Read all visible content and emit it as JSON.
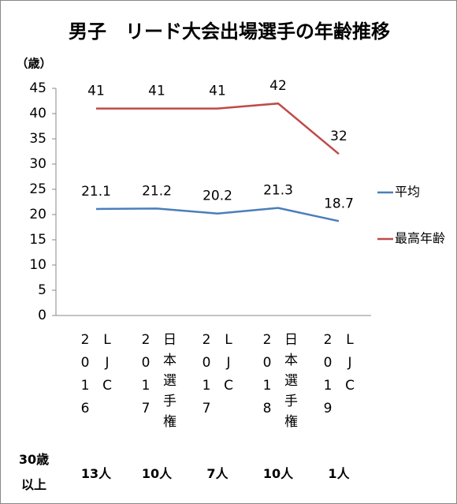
{
  "chart_data": {
    "type": "line",
    "title": "男子　リード大会出場選手の年齢推移",
    "y_unit": "（歳）",
    "categories": [
      "2016 LJC",
      "2017 日本選手権",
      "2017 LJC",
      "2018 日本選手権",
      "2019 LJC"
    ],
    "series": [
      {
        "name": "平均",
        "color": "#4a7ebb",
        "values": [
          21.1,
          21.2,
          20.2,
          21.3,
          18.7
        ]
      },
      {
        "name": "最高年齢",
        "color": "#be4b48",
        "values": [
          41,
          41,
          41,
          42,
          32
        ]
      }
    ],
    "ylim": [
      0,
      45
    ],
    "yticks": [
      0,
      5,
      10,
      15,
      20,
      25,
      30,
      35,
      40,
      45
    ],
    "legend": "right",
    "footer": {
      "label_lines": [
        "30歳",
        "以上"
      ],
      "counts": [
        "13人",
        "10人",
        "7人",
        "10人",
        "1人"
      ]
    }
  }
}
